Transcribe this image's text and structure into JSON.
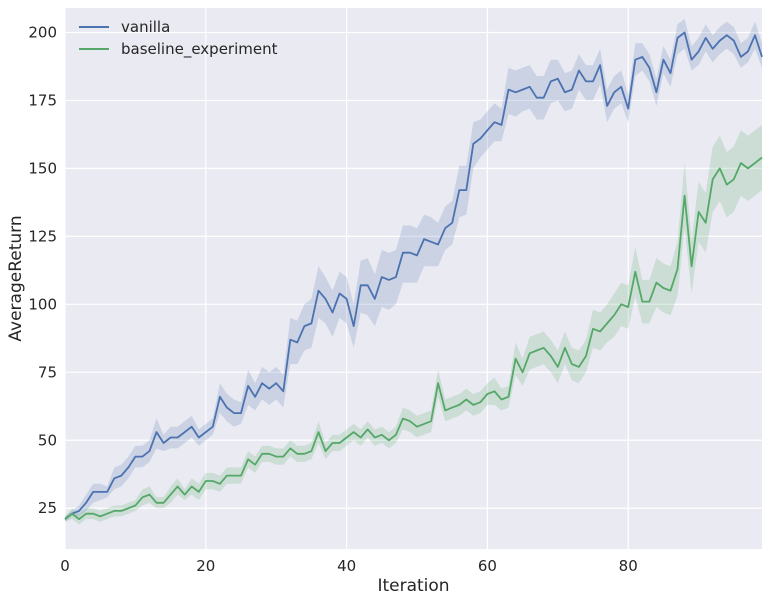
{
  "chart_data": {
    "type": "line",
    "title": "",
    "xlabel": "Iteration",
    "ylabel": "AverageReturn",
    "xlim": [
      0,
      99
    ],
    "ylim": [
      10,
      209
    ],
    "xticks": [
      0,
      20,
      40,
      60,
      80
    ],
    "yticks": [
      25,
      50,
      75,
      100,
      125,
      150,
      175,
      200
    ],
    "grid": true,
    "legend_position": "top-left",
    "background_color": "#EAEAF2",
    "grid_color": "#FFFFFF",
    "series": [
      {
        "name": "vanilla",
        "color": "#4C72B0",
        "x": [
          0,
          1,
          2,
          3,
          4,
          5,
          6,
          7,
          8,
          9,
          10,
          11,
          12,
          13,
          14,
          15,
          16,
          17,
          18,
          19,
          20,
          21,
          22,
          23,
          24,
          25,
          26,
          27,
          28,
          29,
          30,
          31,
          32,
          33,
          34,
          35,
          36,
          37,
          38,
          39,
          40,
          41,
          42,
          43,
          44,
          45,
          46,
          47,
          48,
          49,
          50,
          51,
          52,
          53,
          54,
          55,
          56,
          57,
          58,
          59,
          60,
          61,
          62,
          63,
          64,
          65,
          66,
          67,
          68,
          69,
          70,
          71,
          72,
          73,
          74,
          75,
          76,
          77,
          78,
          79,
          80,
          81,
          82,
          83,
          84,
          85,
          86,
          87,
          88,
          89,
          90,
          91,
          92,
          93,
          94,
          95,
          96,
          97,
          98,
          99
        ],
        "y": [
          21,
          23,
          24,
          27,
          31,
          31,
          31,
          36,
          37,
          40,
          44,
          44,
          46,
          53,
          49,
          51,
          51,
          53,
          55,
          51,
          53,
          55,
          66,
          62,
          60,
          60,
          70,
          66,
          71,
          69,
          71,
          68,
          87,
          86,
          92,
          93,
          105,
          102,
          97,
          104,
          102,
          92,
          107,
          107,
          102,
          110,
          109,
          110,
          119,
          119,
          118,
          124,
          123,
          122,
          128,
          130,
          142,
          142,
          159,
          161,
          164,
          167,
          166,
          179,
          178,
          179,
          180,
          176,
          176,
          182,
          183,
          178,
          179,
          186,
          182,
          182,
          188,
          173,
          178,
          180,
          172,
          190,
          191,
          187,
          178,
          190,
          185,
          198,
          200,
          190,
          193,
          198,
          194,
          197,
          199,
          197,
          191,
          193,
          199,
          191
        ],
        "y_lower": [
          20,
          22,
          22,
          24,
          27,
          28,
          29,
          32,
          33,
          36,
          40,
          40,
          42,
          47,
          46,
          47,
          47,
          49,
          51,
          48,
          50,
          52,
          60,
          57,
          55,
          56,
          63,
          61,
          65,
          63,
          65,
          62,
          78,
          78,
          83,
          84,
          95,
          93,
          88,
          95,
          93,
          84,
          97,
          96,
          92,
          99,
          98,
          100,
          108,
          108,
          108,
          114,
          114,
          114,
          120,
          122,
          132,
          133,
          150,
          154,
          157,
          160,
          160,
          170,
          169,
          171,
          172,
          168,
          168,
          174,
          175,
          171,
          172,
          179,
          175,
          175,
          181,
          167,
          172,
          174,
          167,
          184,
          186,
          182,
          173,
          185,
          180,
          192,
          194,
          186,
          188,
          193,
          189,
          192,
          194,
          192,
          187,
          189,
          194,
          187
        ],
        "y_upper": [
          22,
          24,
          26,
          30,
          34,
          34,
          33,
          40,
          41,
          44,
          48,
          48,
          50,
          58,
          52,
          55,
          55,
          57,
          59,
          54,
          56,
          58,
          71,
          67,
          65,
          64,
          76,
          71,
          77,
          75,
          77,
          74,
          95,
          94,
          100,
          102,
          114,
          110,
          105,
          112,
          110,
          100,
          116,
          117,
          111,
          120,
          119,
          120,
          129,
          129,
          128,
          133,
          132,
          130,
          136,
          138,
          151,
          151,
          167,
          168,
          171,
          174,
          172,
          187,
          186,
          187,
          188,
          184,
          184,
          190,
          190,
          185,
          186,
          192,
          188,
          188,
          194,
          179,
          184,
          186,
          177,
          196,
          196,
          192,
          183,
          195,
          190,
          203,
          205,
          195,
          198,
          203,
          199,
          202,
          204,
          202,
          196,
          198,
          204,
          196
        ]
      },
      {
        "name": "baseline_experiment",
        "color": "#55A868",
        "x": [
          0,
          1,
          2,
          3,
          4,
          5,
          6,
          7,
          8,
          9,
          10,
          11,
          12,
          13,
          14,
          15,
          16,
          17,
          18,
          19,
          20,
          21,
          22,
          23,
          24,
          25,
          26,
          27,
          28,
          29,
          30,
          31,
          32,
          33,
          34,
          35,
          36,
          37,
          38,
          39,
          40,
          41,
          42,
          43,
          44,
          45,
          46,
          47,
          48,
          49,
          50,
          51,
          52,
          53,
          54,
          55,
          56,
          57,
          58,
          59,
          60,
          61,
          62,
          63,
          64,
          65,
          66,
          67,
          68,
          69,
          70,
          71,
          72,
          73,
          74,
          75,
          76,
          77,
          78,
          79,
          80,
          81,
          82,
          83,
          84,
          85,
          86,
          87,
          88,
          89,
          90,
          91,
          92,
          93,
          94,
          95,
          96,
          97,
          98,
          99
        ],
        "y": [
          21,
          23,
          21,
          23,
          23,
          22,
          23,
          24,
          24,
          25,
          26,
          29,
          30,
          27,
          27,
          30,
          33,
          30,
          33,
          31,
          35,
          35,
          34,
          37,
          37,
          37,
          43,
          41,
          45,
          45,
          44,
          44,
          47,
          45,
          45,
          46,
          53,
          46,
          49,
          49,
          51,
          53,
          51,
          54,
          51,
          52,
          50,
          52,
          58,
          57,
          55,
          56,
          57,
          71,
          61,
          62,
          63,
          65,
          63,
          64,
          67,
          68,
          65,
          66,
          80,
          75,
          82,
          83,
          84,
          81,
          77,
          84,
          78,
          77,
          81,
          91,
          90,
          93,
          96,
          100,
          99,
          112,
          101,
          101,
          108,
          106,
          105,
          113,
          140,
          114,
          134,
          130,
          146,
          150,
          144,
          146,
          152,
          150,
          152,
          154
        ],
        "y_lower": [
          20,
          21,
          19,
          21,
          21,
          20,
          21,
          22,
          22,
          23,
          24,
          26,
          27,
          25,
          25,
          27,
          30,
          28,
          30,
          28,
          32,
          32,
          31,
          34,
          34,
          34,
          40,
          38,
          42,
          42,
          41,
          41,
          44,
          42,
          42,
          43,
          49,
          43,
          46,
          46,
          48,
          50,
          48,
          51,
          48,
          49,
          47,
          49,
          54,
          53,
          51,
          52,
          53,
          66,
          57,
          58,
          59,
          61,
          59,
          60,
          63,
          63,
          61,
          62,
          74,
          70,
          76,
          77,
          78,
          75,
          71,
          78,
          72,
          71,
          75,
          84,
          83,
          86,
          88,
          92,
          91,
          103,
          93,
          93,
          99,
          97,
          96,
          103,
          128,
          104,
          123,
          119,
          134,
          138,
          132,
          134,
          140,
          138,
          140,
          142
        ],
        "y_upper": [
          22,
          25,
          23,
          25,
          25,
          24,
          25,
          26,
          26,
          27,
          28,
          32,
          33,
          29,
          29,
          33,
          36,
          32,
          36,
          34,
          38,
          38,
          37,
          40,
          40,
          40,
          46,
          44,
          48,
          48,
          47,
          47,
          50,
          48,
          48,
          49,
          57,
          49,
          52,
          52,
          54,
          56,
          54,
          57,
          54,
          55,
          53,
          55,
          62,
          61,
          59,
          60,
          61,
          76,
          65,
          66,
          67,
          69,
          67,
          68,
          71,
          73,
          69,
          70,
          86,
          80,
          88,
          89,
          90,
          87,
          83,
          90,
          84,
          83,
          87,
          98,
          97,
          100,
          104,
          108,
          107,
          121,
          109,
          109,
          117,
          115,
          114,
          123,
          152,
          124,
          145,
          141,
          158,
          162,
          156,
          158,
          164,
          162,
          164,
          166
        ]
      }
    ]
  }
}
